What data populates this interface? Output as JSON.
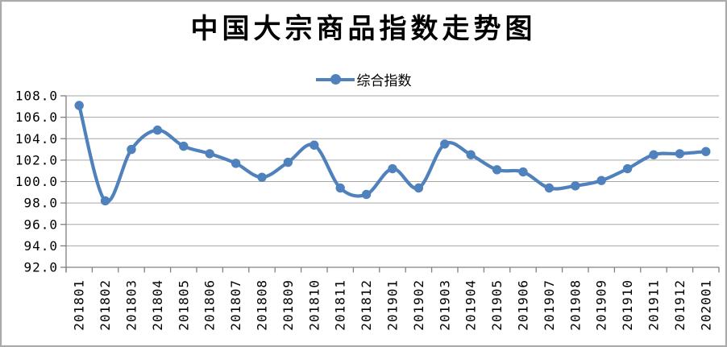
{
  "colors": {
    "accent": "#4F81BD",
    "gridline": "#A6A6A6",
    "axis": "#808080",
    "frame": "#ABABAB",
    "text": "#000000",
    "background": "#FFFFFF"
  },
  "chart_data": {
    "type": "line",
    "title": "中国大宗商品指数走势图",
    "xlabel": "",
    "ylabel": "",
    "grid": true,
    "smoothed_line": true,
    "marker": "circle",
    "legend_position": "top-center",
    "ylim": [
      92.0,
      108.0
    ],
    "ytick_step": 2.0,
    "ytick_labels": [
      "108.0",
      "106.0",
      "104.0",
      "102.0",
      "100.0",
      "98.0",
      "96.0",
      "94.0",
      "92.0"
    ],
    "categories": [
      "201801",
      "201802",
      "201803",
      "201804",
      "201805",
      "201806",
      "201807",
      "201808",
      "201809",
      "201810",
      "201811",
      "201812",
      "201901",
      "201902",
      "201903",
      "201904",
      "201905",
      "201906",
      "201907",
      "201908",
      "201909",
      "201910",
      "201911",
      "201912",
      "202001"
    ],
    "series": [
      {
        "name": "综合指数",
        "color": "#4F81BD",
        "values": [
          107.1,
          98.2,
          103.0,
          104.8,
          103.3,
          102.6,
          101.7,
          100.4,
          101.8,
          103.4,
          99.4,
          98.8,
          101.2,
          99.4,
          103.5,
          102.5,
          101.1,
          100.9,
          99.4,
          99.6,
          100.1,
          101.2,
          102.5,
          102.6,
          102.8
        ]
      }
    ]
  }
}
